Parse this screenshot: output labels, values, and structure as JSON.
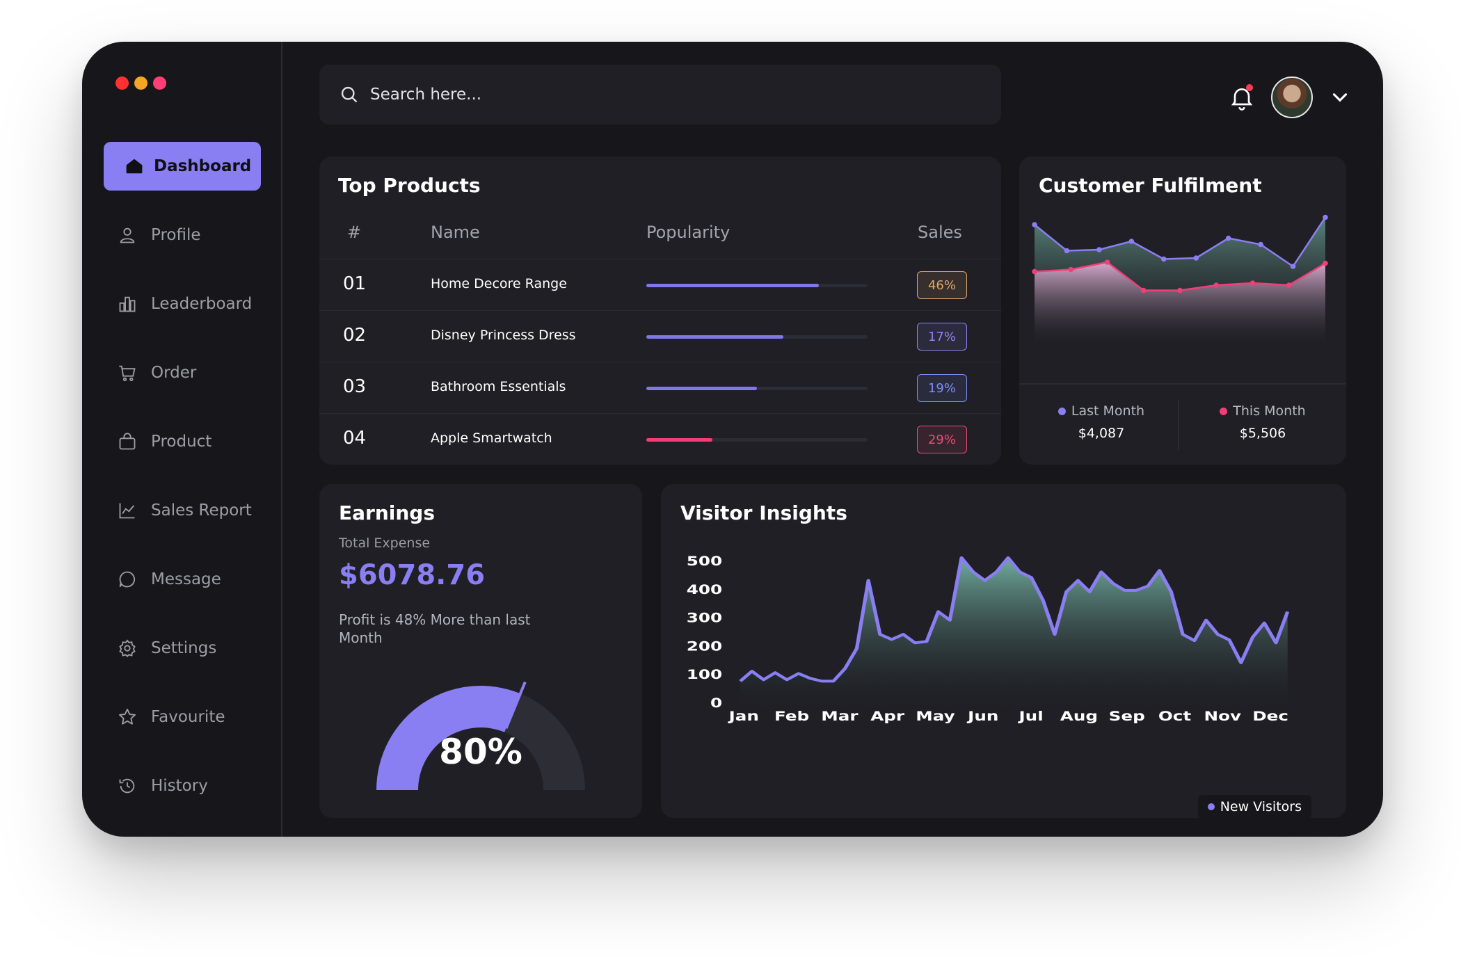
{
  "window_controls": [
    {
      "name": "close",
      "color": "#ff3030"
    },
    {
      "name": "minimize",
      "color": "#f5a623"
    },
    {
      "name": "maximize",
      "color": "#ff3f74"
    }
  ],
  "sidebar": {
    "items": [
      {
        "label": "Dashboard",
        "icon": "home-icon",
        "active": true
      },
      {
        "label": "Profile",
        "icon": "user-icon",
        "active": false
      },
      {
        "label": "Leaderboard",
        "icon": "leaderboard-icon",
        "active": false
      },
      {
        "label": "Order",
        "icon": "cart-icon",
        "active": false
      },
      {
        "label": "Product",
        "icon": "bag-icon",
        "active": false
      },
      {
        "label": "Sales Report",
        "icon": "line-chart-icon",
        "active": false
      },
      {
        "label": "Message",
        "icon": "chat-icon",
        "active": false
      },
      {
        "label": "Settings",
        "icon": "gear-icon",
        "active": false
      },
      {
        "label": "Favourite",
        "icon": "star-icon",
        "active": false
      },
      {
        "label": "History",
        "icon": "history-icon",
        "active": false
      }
    ]
  },
  "search": {
    "placeholder": "Search here..."
  },
  "header": {
    "notification_badge": true
  },
  "top_products": {
    "title": "Top Products",
    "columns": [
      "#",
      "Name",
      "Popularity",
      "Sales"
    ],
    "rows": [
      {
        "num": "01",
        "name": "Home Decore Range",
        "popularity": 0.78,
        "sales": "46%",
        "color": "#8077e8",
        "pill_color": "#e0a868"
      },
      {
        "num": "02",
        "name": "Disney Princess Dress",
        "popularity": 0.62,
        "sales": "17%",
        "color": "#8077e8",
        "pill_color": "#8f86f0"
      },
      {
        "num": "03",
        "name": "Bathroom Essentials",
        "popularity": 0.5,
        "sales": "19%",
        "color": "#8077e8",
        "pill_color": "#7f8cf8"
      },
      {
        "num": "04",
        "name": "Apple Smartwatch",
        "popularity": 0.3,
        "sales": "29%",
        "color": "#ef3f78",
        "pill_color": "#ef4c74"
      }
    ]
  },
  "customer_fulfilment": {
    "title": "Customer Fulfilment",
    "legend": [
      {
        "label": "Last Month",
        "value": "$4,087",
        "color": "#8a7ff2"
      },
      {
        "label": "This Month",
        "value": "$5,506",
        "color": "#ef3f78"
      }
    ],
    "series": [
      {
        "name": "Last Month",
        "color": "#8a7ff2",
        "values": [
          88,
          63,
          64,
          72,
          55,
          56,
          75,
          69,
          48,
          95
        ]
      },
      {
        "name": "This Month",
        "color": "#ef3f78",
        "values": [
          43,
          45,
          52,
          25,
          25,
          30,
          32,
          30,
          51
        ]
      }
    ]
  },
  "earnings": {
    "title": "Earnings",
    "subtitle": "Total Expense",
    "amount": "$6078.76",
    "note": "Profit is 48% More than last Month",
    "gauge_value": 0.8,
    "gauge_label": "80%"
  },
  "chart_data": {
    "type": "area",
    "title": "Visitor Insights",
    "x_labels": [
      "Jan",
      "Feb",
      "Mar",
      "Apr",
      "May",
      "Jun",
      "Jul",
      "Aug",
      "Sep",
      "Oct",
      "Nov",
      "Dec"
    ],
    "ylim": [
      0,
      500
    ],
    "y_ticks": [
      0,
      100,
      200,
      300,
      400,
      500
    ],
    "series": [
      {
        "name": "New Visitors",
        "color": "#8a7ff2",
        "values": [
          75,
          110,
          80,
          105,
          80,
          102,
          85,
          75,
          75,
          120,
          190,
          430,
          240,
          222,
          240,
          210,
          215,
          320,
          290,
          510,
          460,
          430,
          460,
          510,
          460,
          440,
          360,
          240,
          390,
          430,
          390,
          460,
          420,
          395,
          395,
          410,
          465,
          390,
          240,
          218,
          290,
          240,
          220,
          140,
          230,
          280,
          210,
          320
        ]
      }
    ]
  }
}
